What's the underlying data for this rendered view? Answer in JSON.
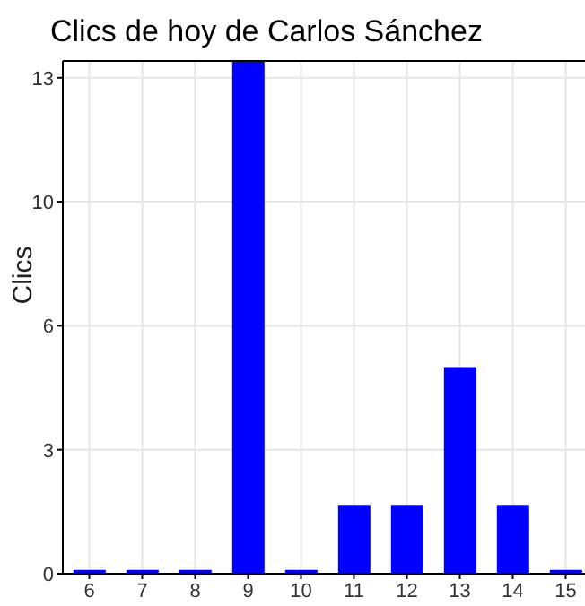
{
  "chart_data": {
    "type": "bar",
    "title": "Clics de hoy de Carlos Sánchez",
    "ylabel": "Clics",
    "categories": [
      "6",
      "7",
      "8",
      "9",
      "10",
      "11",
      "12",
      "13",
      "14",
      "15"
    ],
    "values": [
      0.1,
      0.1,
      0.1,
      13.4,
      0.1,
      1.8,
      1.8,
      5.4,
      1.8,
      0.1
    ],
    "color": "#0000ff",
    "ylim": [
      0,
      13.4
    ],
    "yticks": [
      0,
      {
        "value": 3.24,
        "label": "3"
      },
      {
        "value": 6.48,
        "label": "6"
      },
      {
        "value": 9.72,
        "label": "10"
      },
      {
        "value": 12.96,
        "label": "13"
      }
    ],
    "grid": true
  }
}
